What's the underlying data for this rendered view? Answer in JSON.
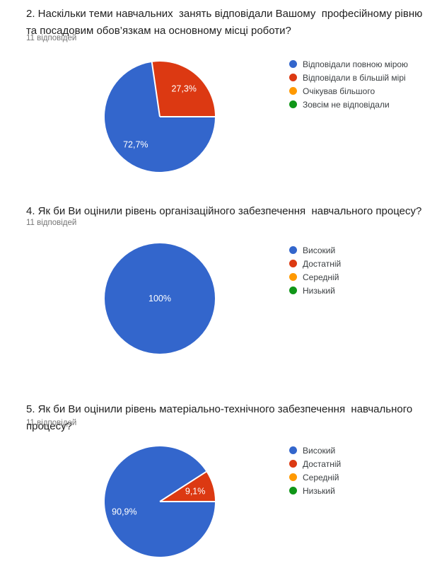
{
  "page": {
    "background_color": "#ffffff",
    "title_color": "#212121",
    "subtitle_color": "#757575",
    "legend_text_color": "#3c4043",
    "slice_label_color": "#ffffff"
  },
  "palette": {
    "blue": "#3366CC",
    "red": "#DC3912",
    "orange": "#FF9900",
    "green": "#109618"
  },
  "chart_data": [
    {
      "type": "pie",
      "title": "2. Наскільки теми навчальних  занять відповідали Вашому  професійному рівню та посадовим обов’язкам на основному місці роботи?",
      "subtitle": "11 відповідей",
      "legend_position": "right",
      "categories": [
        "Відповідали повною мірою",
        "Відповідали в більшій мірі",
        "Очікував більшого",
        "Зовсім не відповідали"
      ],
      "values_percent": [
        72.7,
        27.3,
        0,
        0
      ],
      "slice_labels": [
        "72,7%",
        "27,3%"
      ],
      "colors": [
        "#3366CC",
        "#DC3912",
        "#FF9900",
        "#109618"
      ],
      "start_angle_clockwise_from_top_deg": 90
    },
    {
      "type": "pie",
      "title": "4. Як би Ви оцінили рівень організаційного забезпечення  навчального процесу?",
      "subtitle": "11 відповідей",
      "legend_position": "right",
      "categories": [
        "Високий",
        "Достатній",
        "Середній",
        "Низький"
      ],
      "values_percent": [
        100,
        0,
        0,
        0
      ],
      "slice_labels": [
        "100%"
      ],
      "colors": [
        "#3366CC",
        "#DC3912",
        "#FF9900",
        "#109618"
      ],
      "start_angle_clockwise_from_top_deg": 90
    },
    {
      "type": "pie",
      "title": "5. Як би Ви оцінили рівень матеріально-технічного забезпечення  навчального процесу?",
      "subtitle": "11 відповідей",
      "legend_position": "right",
      "categories": [
        "Високий",
        "Достатній",
        "Середній",
        "Низький"
      ],
      "values_percent": [
        90.9,
        9.1,
        0,
        0
      ],
      "slice_labels": [
        "90,9%",
        "9,1%"
      ],
      "colors": [
        "#3366CC",
        "#DC3912",
        "#FF9900",
        "#109618"
      ],
      "start_angle_clockwise_from_top_deg": 90
    }
  ]
}
